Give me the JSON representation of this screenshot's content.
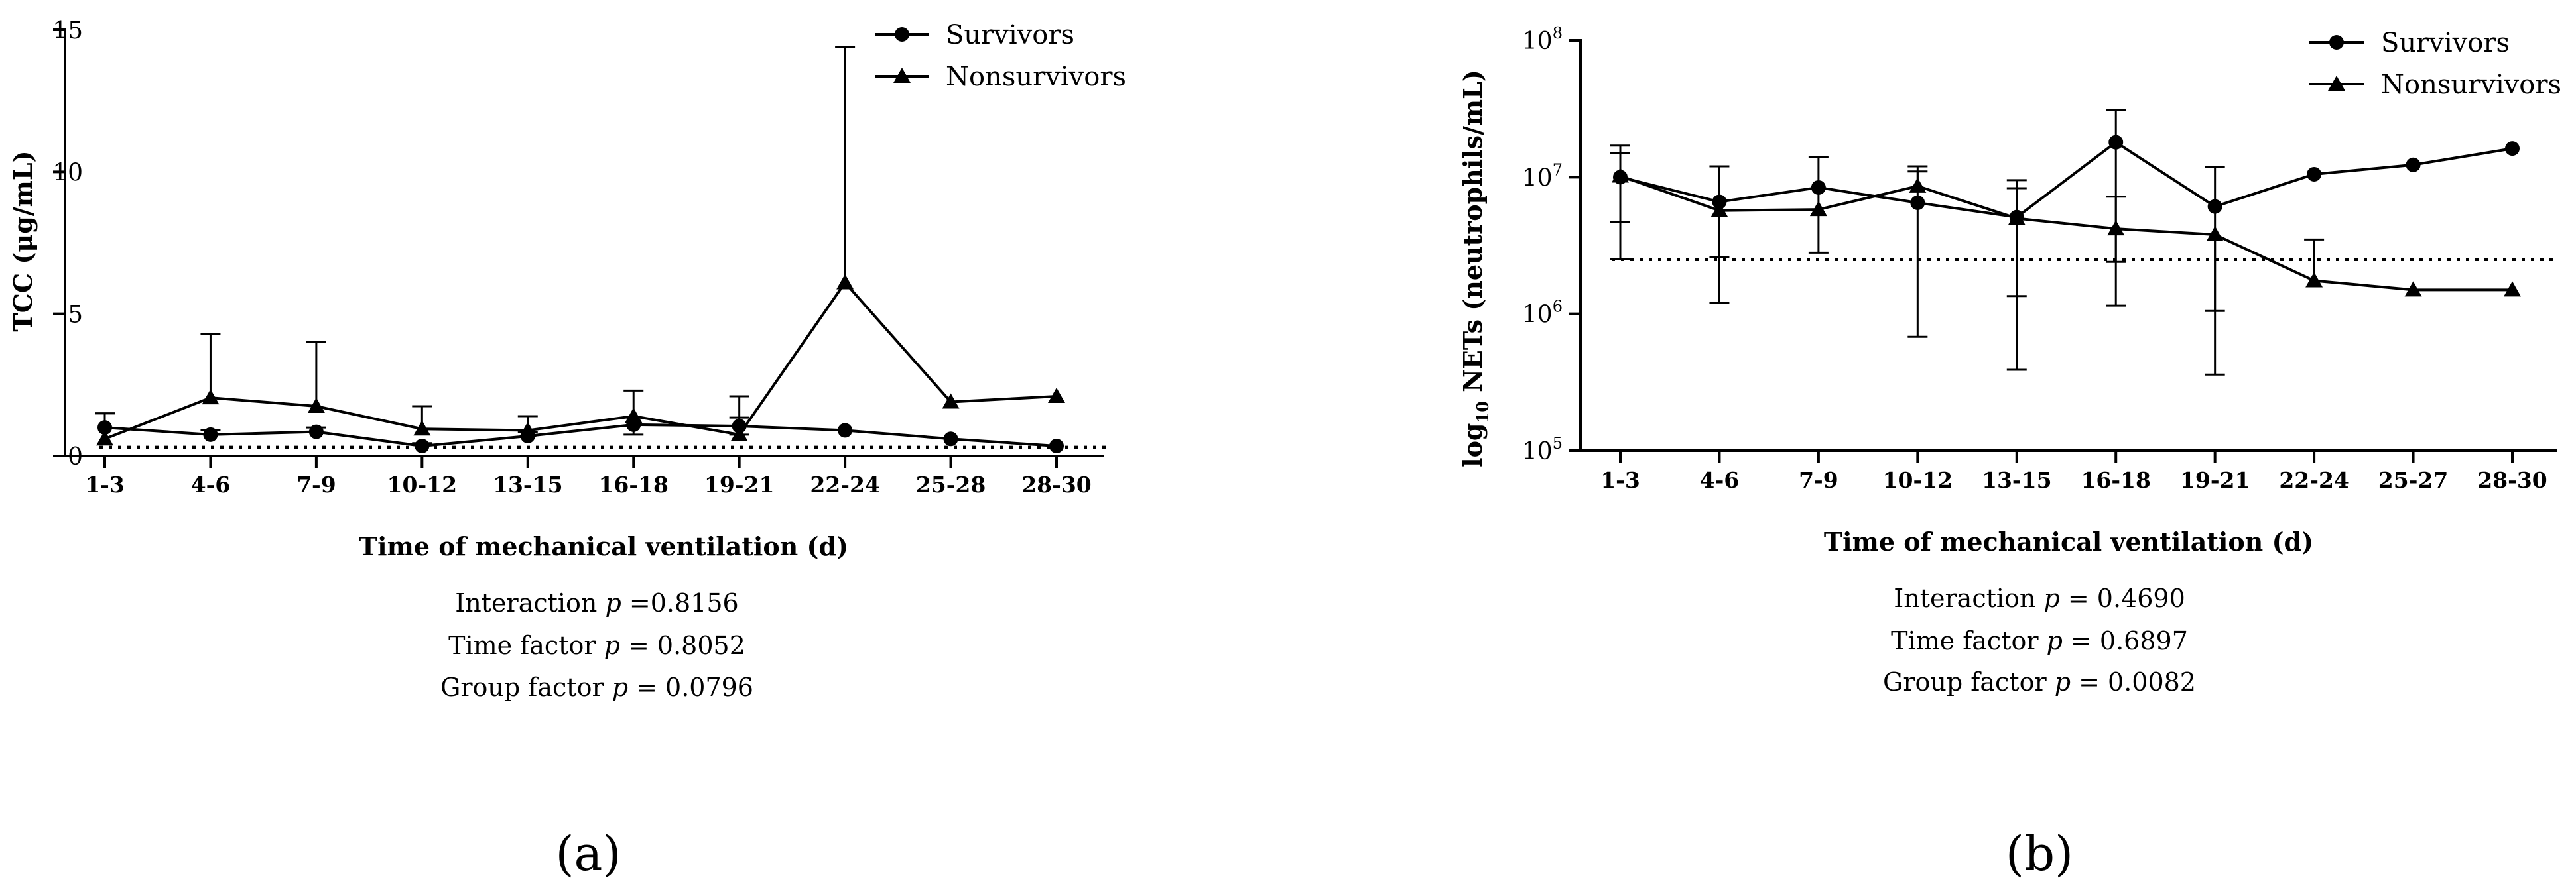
{
  "chart_data": [
    {
      "type": "line",
      "panel_label": "(a)",
      "ylabel": "TCC (μg/mL)",
      "ylabel_parts": {
        "main": "TCC (μg/mL)"
      },
      "xlabel": "Time of mechanical ventilation (d)",
      "yscale": "linear",
      "ylim": [
        0,
        15
      ],
      "yticks": [
        0,
        5,
        10,
        15
      ],
      "ytick_labels": [
        "0",
        "5",
        "10",
        "15"
      ],
      "categories": [
        "1-3",
        "4-6",
        "7-9",
        "10-12",
        "13-15",
        "16-18",
        "19-21",
        "22-24",
        "25-28",
        "28-30"
      ],
      "reference_line": 0.3,
      "series": [
        {
          "name": "Survivors",
          "marker": "circle",
          "values": [
            1.0,
            0.75,
            0.85,
            0.35,
            0.7,
            1.1,
            1.05,
            0.9,
            0.6,
            0.35
          ],
          "error_high": [
            1.5,
            0.9,
            1.0,
            0.45,
            0.85,
            1.35,
            1.35,
            null,
            null,
            null
          ],
          "error_low": [
            null,
            null,
            null,
            null,
            null,
            0.75,
            0.75,
            null,
            null,
            null
          ]
        },
        {
          "name": "Nonsurvivors",
          "marker": "triangle",
          "values": [
            0.6,
            2.05,
            1.75,
            0.95,
            0.9,
            1.4,
            0.75,
            6.1,
            1.9,
            2.1
          ],
          "error_high": [
            1.5,
            4.3,
            4.0,
            1.75,
            1.4,
            2.3,
            2.1,
            14.4,
            null,
            null
          ],
          "error_low": [
            null,
            null,
            null,
            null,
            null,
            null,
            null,
            null,
            null,
            null
          ]
        }
      ],
      "stats": {
        "line1": {
          "label": "Interaction ",
          "p": "p",
          "value": " =0.8156"
        },
        "line2": {
          "label": "Time factor ",
          "p": "p",
          "value": " = 0.8052"
        },
        "line3": {
          "label": "Group factor ",
          "p": "p",
          "value": " = 0.0796"
        }
      }
    },
    {
      "type": "line",
      "panel_label": "(b)",
      "ylabel": "log10 NETs (neutrophils/mL)",
      "ylabel_parts": {
        "prefix": "log",
        "sub": "10",
        "rest": " NETs (neutrophils/mL)"
      },
      "xlabel": "Time of mechanical ventilation (d)",
      "yscale": "log",
      "ylim": [
        100000,
        100000000
      ],
      "yticks": [
        100000,
        1000000,
        10000000,
        100000000
      ],
      "ytick_labels": [
        {
          "base": "10",
          "exp": "5"
        },
        {
          "base": "10",
          "exp": "6"
        },
        {
          "base": "10",
          "exp": "7"
        },
        {
          "base": "10",
          "exp": "8"
        }
      ],
      "categories": [
        "1-3",
        "4-6",
        "7-9",
        "10-12",
        "13-15",
        "16-18",
        "19-21",
        "22-24",
        "25-27",
        "28-30"
      ],
      "reference_line": 2500000,
      "series": [
        {
          "name": "Survivors",
          "marker": "circle",
          "values": [
            10000000,
            6600000,
            8400000,
            6500000,
            5100000,
            18000000,
            6100000,
            10500000,
            12300000,
            16200000
          ],
          "error_high": [
            17000000,
            12000000,
            14000000,
            12000000,
            9500000,
            31000000,
            11800000,
            null,
            null,
            null
          ],
          "error_low": [
            4700000,
            1200000,
            2800000,
            680000,
            390000,
            1150000,
            360000,
            null,
            null,
            null
          ]
        },
        {
          "name": "Nonsurvivors",
          "marker": "triangle",
          "values": [
            10200000,
            5700000,
            5800000,
            8600000,
            5000000,
            4200000,
            3800000,
            1750000,
            1500000,
            1500000
          ],
          "error_high": [
            15000000,
            null,
            null,
            11000000,
            8300000,
            7200000,
            null,
            3500000,
            null,
            null
          ],
          "error_low": [
            2500000,
            2600000,
            null,
            null,
            1350000,
            2400000,
            1050000,
            null,
            null,
            null
          ]
        }
      ],
      "stats": {
        "line1": {
          "label": "Interaction ",
          "p": "p",
          "value": " = 0.4690"
        },
        "line2": {
          "label": "Time factor ",
          "p": "p",
          "value": " = 0.6897"
        },
        "line3": {
          "label": "Group factor ",
          "p": "p",
          "value": " = 0.0082"
        }
      }
    }
  ]
}
